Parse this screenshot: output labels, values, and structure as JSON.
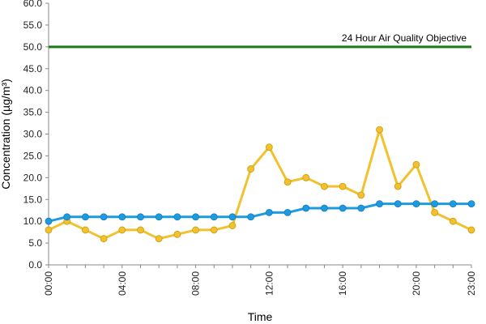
{
  "chart_data": {
    "type": "line",
    "title": "",
    "xlabel": "Time",
    "ylabel": "Concentration (µg/m³)",
    "ylim": [
      0,
      60
    ],
    "yticks": [
      "0.0",
      "5.0",
      "10.0",
      "15.0",
      "20.0",
      "25.0",
      "30.0",
      "35.0",
      "40.0",
      "45.0",
      "50.0",
      "55.0",
      "60.0"
    ],
    "x": [
      "00:00",
      "01:00",
      "02:00",
      "03:00",
      "04:00",
      "05:00",
      "06:00",
      "07:00",
      "08:00",
      "09:00",
      "10:00",
      "11:00",
      "12:00",
      "13:00",
      "14:00",
      "15:00",
      "16:00",
      "17:00",
      "18:00",
      "19:00",
      "20:00",
      "21:00",
      "22:00",
      "23:00"
    ],
    "xtick_labels": [
      "00:00",
      "04:00",
      "08:00",
      "12:00",
      "16:00",
      "20:00",
      "23:00"
    ],
    "grid": false,
    "series": [
      {
        "color": "#F2C12E",
        "values": [
          8,
          10,
          8,
          6,
          8,
          8,
          6,
          7,
          8,
          8,
          9,
          22,
          27,
          19,
          20,
          18,
          18,
          16,
          31,
          18,
          23,
          12,
          10,
          8
        ]
      },
      {
        "color": "#1E9BE0",
        "values": [
          10,
          11,
          11,
          11,
          11,
          11,
          11,
          11,
          11,
          11,
          11,
          11,
          12,
          12,
          13,
          13,
          13,
          13,
          14,
          14,
          14,
          14,
          14,
          14
        ]
      }
    ],
    "reference_line": {
      "label": "24 Hour Air Quality Objective",
      "value": 50,
      "color": "#1A7A1A"
    }
  }
}
